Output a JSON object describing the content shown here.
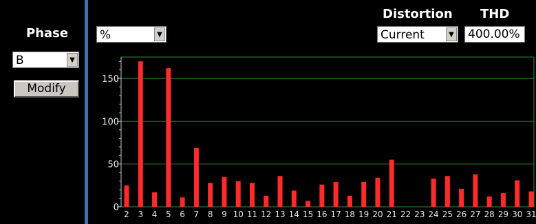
{
  "phase": {
    "label": "Phase",
    "selected": "B",
    "modify_label": "Modify"
  },
  "unit_select": {
    "selected": "%"
  },
  "distortion": {
    "label": "Distortion",
    "selected": "Current"
  },
  "thd": {
    "label": "THD",
    "value": "400.00%"
  },
  "colors": {
    "bar": "#ff2a2a",
    "grid": "#2e8b2e",
    "divider": "#3d6fb3"
  },
  "chart_data": {
    "type": "bar",
    "categories": [
      "2",
      "3",
      "4",
      "5",
      "6",
      "7",
      "8",
      "9",
      "10",
      "11",
      "12",
      "13",
      "14",
      "15",
      "16",
      "17",
      "18",
      "19",
      "20",
      "21",
      "22",
      "23",
      "24",
      "25",
      "26",
      "27",
      "28",
      "29",
      "30",
      "31"
    ],
    "values": [
      25,
      170,
      17,
      162,
      11,
      69,
      28,
      35,
      30,
      28,
      13,
      36,
      19,
      7,
      26,
      29,
      13,
      29,
      34,
      55,
      0,
      0,
      33,
      36,
      21,
      38,
      12,
      16,
      31,
      18
    ],
    "ylim": [
      0,
      175
    ],
    "yticks": [
      0,
      50,
      100,
      150
    ],
    "grid": true
  }
}
